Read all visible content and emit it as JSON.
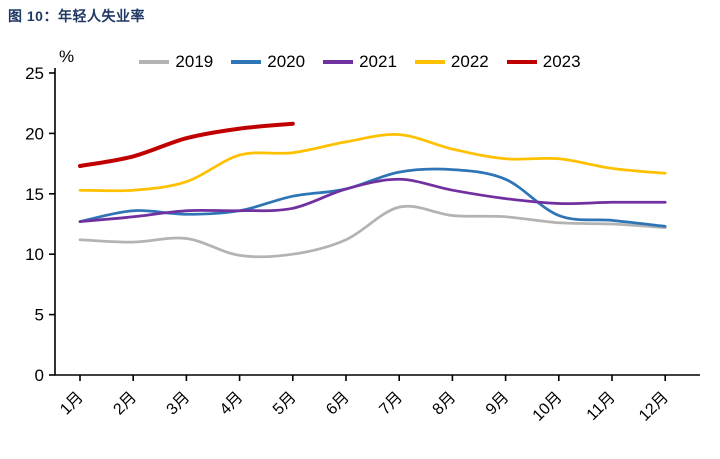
{
  "title": "图 10：年轻人失业率",
  "chart_data": {
    "type": "line",
    "title": "年轻人失业率",
    "figure_label": "图 10",
    "ylabel_unit": "%",
    "ylim": [
      0,
      25
    ],
    "yticks": [
      0,
      5,
      10,
      15,
      20,
      25
    ],
    "grid": false,
    "legend_position": "top-center",
    "categories": [
      "1月",
      "2月",
      "3月",
      "4月",
      "5月",
      "6月",
      "7月",
      "8月",
      "9月",
      "10月",
      "11月",
      "12月"
    ],
    "series": [
      {
        "name": "2019",
        "color": "#b3b3b3",
        "values": [
          11.2,
          11.0,
          11.3,
          9.9,
          10.0,
          11.2,
          13.9,
          13.2,
          13.1,
          12.6,
          12.5,
          12.2
        ]
      },
      {
        "name": "2020",
        "color": "#2e75b6",
        "values": [
          12.7,
          13.6,
          13.3,
          13.6,
          14.8,
          15.4,
          16.8,
          17.0,
          16.2,
          13.2,
          12.8,
          12.3
        ]
      },
      {
        "name": "2021",
        "color": "#7030a0",
        "values": [
          12.7,
          13.1,
          13.6,
          13.6,
          13.8,
          15.4,
          16.2,
          15.3,
          14.6,
          14.2,
          14.3,
          14.3
        ]
      },
      {
        "name": "2022",
        "color": "#ffc000",
        "values": [
          15.3,
          15.3,
          16.0,
          18.2,
          18.4,
          19.3,
          19.9,
          18.7,
          17.9,
          17.9,
          17.1,
          16.7
        ]
      },
      {
        "name": "2023",
        "color": "#c00000",
        "values": [
          17.3,
          18.1,
          19.6,
          20.4,
          20.8
        ]
      }
    ]
  }
}
